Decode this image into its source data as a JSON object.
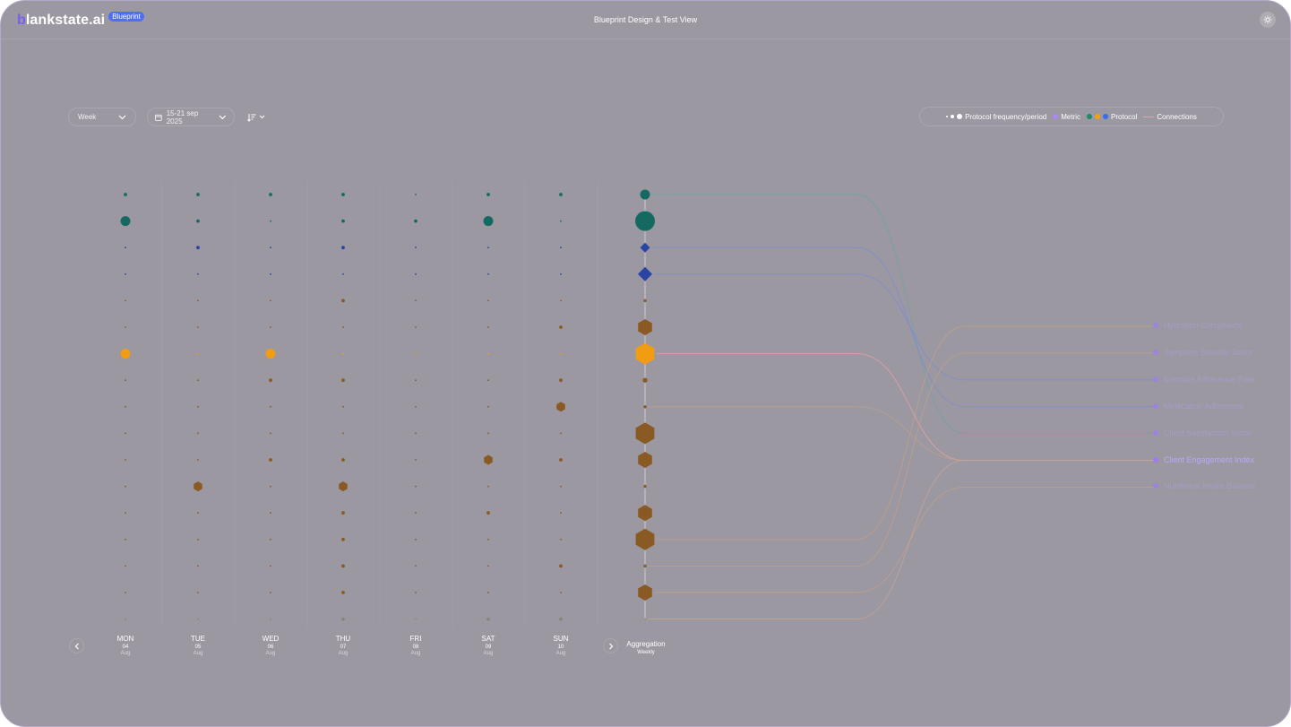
{
  "app": {
    "logo_text": "lankstate.ai",
    "logo_b": "b",
    "badge": "Blueprint",
    "title": "Blueprint Design & Test View"
  },
  "icons": {
    "settings": "sun-gear-icon",
    "calendar": "calendar-icon",
    "sort": "sort-icon",
    "chevron": "chevron-down-icon",
    "prev": "chevron-left-icon",
    "next": "chevron-right-icon"
  },
  "controls": {
    "period": "Week",
    "date_range": "15-21 sep 2025"
  },
  "legend": {
    "frequency": "Protocol frequency/period",
    "metric": "Metric",
    "protocol": "Protocol",
    "connections": "Connections",
    "colors": {
      "metric": "#a98af5",
      "green": "#1d8a6c",
      "orange": "#f2a20e",
      "blue": "#3a6cf0",
      "connection": "#d9a2b5"
    }
  },
  "days": [
    {
      "name": "MON",
      "num": "04",
      "month": "Aug"
    },
    {
      "name": "TUE",
      "num": "05",
      "month": "Aug"
    },
    {
      "name": "WED",
      "num": "06",
      "month": "Aug"
    },
    {
      "name": "THU",
      "num": "07",
      "month": "Aug"
    },
    {
      "name": "FRI",
      "num": "08",
      "month": "Aug"
    },
    {
      "name": "SAT",
      "num": "09",
      "month": "Aug"
    },
    {
      "name": "SUN",
      "num": "10",
      "month": "Aug"
    }
  ],
  "aggregation": {
    "title": "Aggregation",
    "subtitle": "Weekly"
  },
  "protocol_colors": {
    "teal": "#146a60",
    "blue": "#2845a3",
    "brown": "#8a5a24",
    "orange": "#f29c12",
    "gray": "#8b857c"
  },
  "rows": [
    {
      "color": "teal",
      "shape": "circle",
      "values": [
        1,
        1,
        1,
        1,
        0,
        1,
        1
      ],
      "agg": 3
    },
    {
      "color": "teal",
      "shape": "circle",
      "values": [
        3,
        1,
        0,
        1,
        1,
        3,
        0
      ],
      "agg": 5
    },
    {
      "color": "blue",
      "shape": "diamond",
      "values": [
        0,
        1,
        0,
        1,
        0,
        0,
        0
      ],
      "agg": 3
    },
    {
      "color": "blue",
      "shape": "diamond",
      "values": [
        0,
        0,
        0,
        0,
        0,
        0,
        0
      ],
      "agg": 4
    },
    {
      "color": "brown",
      "shape": "hexagon",
      "values": [
        0,
        0,
        0,
        1,
        0,
        0,
        0
      ],
      "agg": 0
    },
    {
      "color": "brown",
      "shape": "hexagon",
      "values": [
        0,
        0,
        0,
        0,
        0,
        0,
        1
      ],
      "agg": 4
    },
    {
      "color": "orange",
      "shape": "hexagon",
      "values": [
        3,
        0,
        3,
        0,
        0,
        0,
        0
      ],
      "agg": 5
    },
    {
      "color": "brown",
      "shape": "hexagon",
      "values": [
        0,
        0,
        1,
        1,
        0,
        0,
        1
      ],
      "agg": 1
    },
    {
      "color": "brown",
      "shape": "hexagon",
      "values": [
        0,
        0,
        0,
        0,
        0,
        0,
        3
      ],
      "agg": 0
    },
    {
      "color": "brown",
      "shape": "hexagon",
      "values": [
        0,
        0,
        0,
        0,
        0,
        0,
        0
      ],
      "agg": 5
    },
    {
      "color": "brown",
      "shape": "hexagon",
      "values": [
        0,
        0,
        1,
        1,
        0,
        3,
        1
      ],
      "agg": 4
    },
    {
      "color": "brown",
      "shape": "hexagon",
      "values": [
        0,
        3,
        0,
        3,
        0,
        0,
        0
      ],
      "agg": 0
    },
    {
      "color": "brown",
      "shape": "hexagon",
      "values": [
        0,
        0,
        0,
        1,
        0,
        1,
        0
      ],
      "agg": 4
    },
    {
      "color": "brown",
      "shape": "hexagon",
      "values": [
        0,
        0,
        0,
        1,
        0,
        0,
        0
      ],
      "agg": 5
    },
    {
      "color": "brown",
      "shape": "hexagon",
      "values": [
        0,
        0,
        0,
        1,
        0,
        0,
        1
      ],
      "agg": 0
    },
    {
      "color": "brown",
      "shape": "hexagon",
      "values": [
        0,
        0,
        0,
        1,
        0,
        0,
        0
      ],
      "agg": 4
    },
    {
      "color": "gray",
      "shape": "circle",
      "values": [
        0,
        0,
        0,
        1,
        0,
        1,
        1
      ],
      "agg": 0
    }
  ],
  "metrics": [
    {
      "label": "Hydration Compliance",
      "active": false
    },
    {
      "label": "Symptom Severity Score",
      "active": false
    },
    {
      "label": "Exercise Adherence Rate",
      "active": false
    },
    {
      "label": "Medication Adherence",
      "active": false
    },
    {
      "label": "Client Satisfaction Score",
      "active": false
    },
    {
      "label": "Client Engagement Index",
      "active": true
    },
    {
      "label": "Nutritional Intake Balance",
      "active": false
    }
  ],
  "connections": [
    {
      "row": 0,
      "metric": 4
    },
    {
      "row": 2,
      "metric": 3
    },
    {
      "row": 3,
      "metric": 2
    },
    {
      "row": 6,
      "metric": 5
    },
    {
      "row": 8,
      "metric": 5
    },
    {
      "row": 13,
      "metric": 0
    },
    {
      "row": 14,
      "metric": 1
    },
    {
      "row": 15,
      "metric": 6
    },
    {
      "row": 16,
      "metric": 5
    }
  ]
}
